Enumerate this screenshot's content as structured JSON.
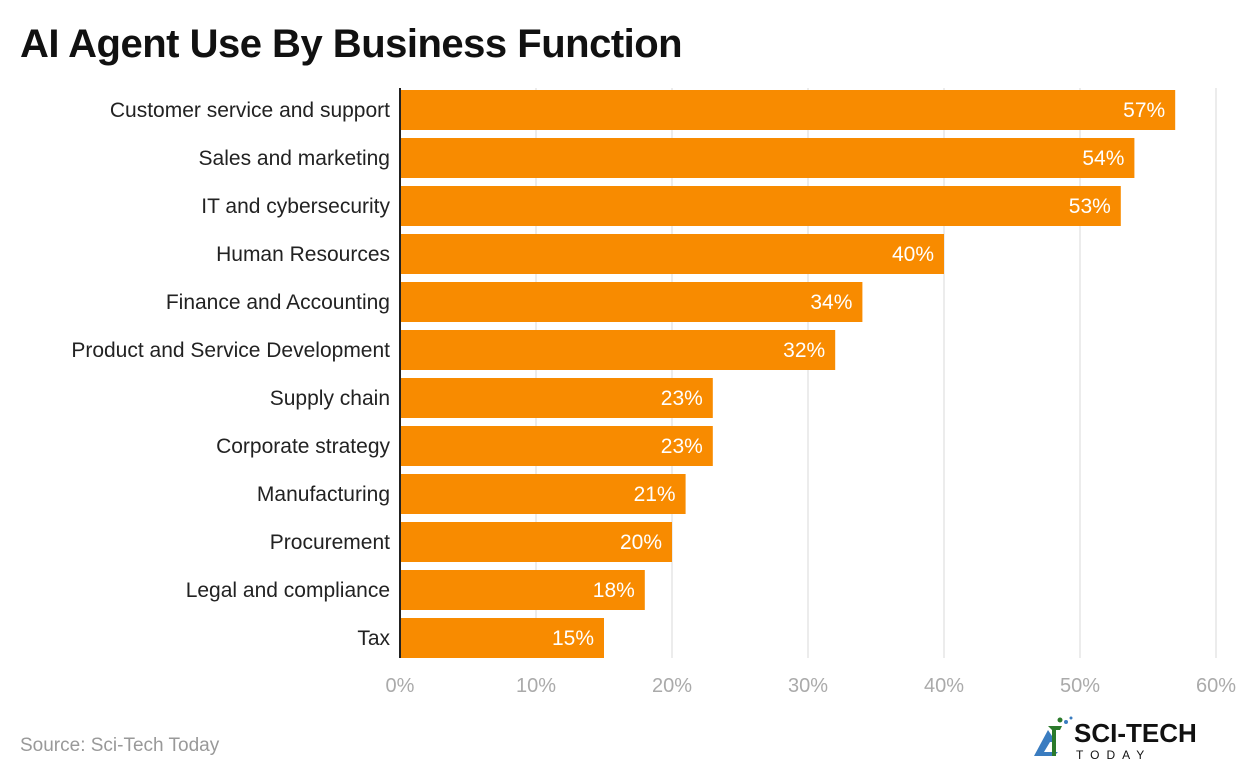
{
  "chart_data": {
    "type": "bar",
    "orientation": "horizontal",
    "title": "AI Agent Use By Business Function",
    "categories": [
      "Customer service and support",
      "Sales and marketing",
      "IT and cybersecurity",
      "Human Resources",
      "Finance and Accounting",
      "Product and Service Development",
      "Supply chain",
      "Corporate strategy",
      "Manufacturing",
      "Procurement",
      "Legal and compliance",
      "Tax"
    ],
    "values": [
      57,
      54,
      53,
      40,
      34,
      32,
      23,
      23,
      21,
      20,
      18,
      15
    ],
    "value_suffix": "%",
    "xlim": [
      0,
      60
    ],
    "xticks": [
      0,
      10,
      20,
      30,
      40,
      50,
      60
    ],
    "xtick_labels": [
      "0%",
      "10%",
      "20%",
      "30%",
      "40%",
      "50%",
      "60%"
    ],
    "xlabel": "",
    "ylabel": "",
    "grid": true,
    "bar_color": "#F88B00"
  },
  "source": "Source: Sci-Tech Today",
  "logo": {
    "line1": "SCI-TECH",
    "line2": "TODAY"
  }
}
